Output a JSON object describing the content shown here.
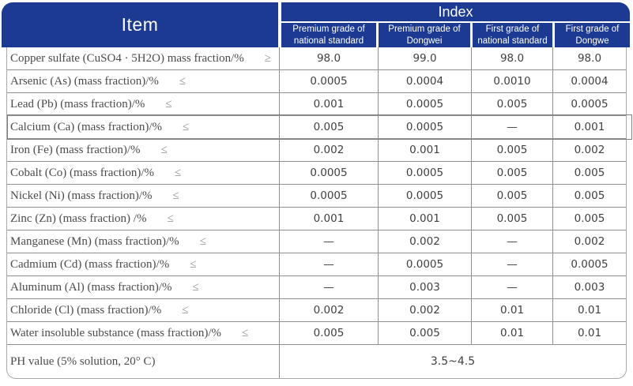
{
  "header": {
    "item": "Item",
    "index": "Index",
    "columns": [
      "Premium grade of national standard",
      "Premium grade of Dongwei",
      "First grade of national standard",
      "First grade of Dongwe"
    ]
  },
  "rows": [
    {
      "label": "Copper sulfate (CuSO4 · 5H2O) mass fraction/%",
      "comparator": "≥",
      "values": [
        "98.0",
        "99.0",
        "98.0",
        "98.0"
      ],
      "highlighted": false
    },
    {
      "label": "Arsenic (As) (mass fraction)/%",
      "comparator": "≤",
      "values": [
        "0.0005",
        "0.0004",
        "0.0010",
        "0.0004"
      ],
      "highlighted": false
    },
    {
      "label": "Lead (Pb) (mass fraction)/%",
      "comparator": "≤",
      "values": [
        "0.001",
        "0.0005",
        "0.005",
        "0.0005"
      ],
      "highlighted": false
    },
    {
      "label": "Calcium (Ca) (mass fraction)/%",
      "comparator": "≤",
      "values": [
        "0.005",
        "0.0005",
        "—",
        "0.001"
      ],
      "highlighted": true
    },
    {
      "label": "Iron (Fe) (mass fraction)/%",
      "comparator": "≤",
      "values": [
        "0.002",
        "0.001",
        "0.005",
        "0.002"
      ],
      "highlighted": false
    },
    {
      "label": "Cobalt (Co) (mass fraction)/%",
      "comparator": "≤",
      "values": [
        "0.0005",
        "0.0005",
        "0.005",
        "0.005"
      ],
      "highlighted": false
    },
    {
      "label": "Nickel (Ni) (mass fraction)/%",
      "comparator": "≤",
      "values": [
        "0.0005",
        "0.0005",
        "0.005",
        "0.005"
      ],
      "highlighted": false
    },
    {
      "label": "Zinc (Zn) (mass fraction) /%",
      "comparator": "≤",
      "values": [
        "0.001",
        "0.001",
        "0.005",
        "0.005"
      ],
      "highlighted": false
    },
    {
      "label": "Manganese (Mn) (mass fraction)/%",
      "comparator": "≤",
      "values": [
        "—",
        "0.002",
        "—",
        "0.002"
      ],
      "highlighted": false
    },
    {
      "label": "Cadmium (Cd) (mass fraction)/%",
      "comparator": "≤",
      "values": [
        "—",
        "0.0005",
        "—",
        "0.0005"
      ],
      "highlighted": false
    },
    {
      "label": "Aluminum (Al) (mass fraction)/%",
      "comparator": "≤",
      "values": [
        "—",
        "0.003",
        "—",
        "0.003"
      ],
      "highlighted": false
    },
    {
      "label": "Chloride (Cl) (mass fraction)/%",
      "comparator": "≤",
      "values": [
        "0.002",
        "0.002",
        "0.01",
        "0.01"
      ],
      "highlighted": false
    },
    {
      "label": "Water insoluble substance (mass fraction)/%",
      "comparator": "≤",
      "values": [
        "0.005",
        "0.005",
        "0.01",
        "0.01"
      ],
      "highlighted": false
    }
  ],
  "ph_row": {
    "label": "PH value (5% solution, 20° C)",
    "value": "3.5~4.5"
  },
  "colors": {
    "header_navy": "#1d3a92",
    "inner_line": "#8f8f8f",
    "outer_border": "#a9a9a9",
    "item_text": "#4b4b4b",
    "value_text": "#404040"
  }
}
